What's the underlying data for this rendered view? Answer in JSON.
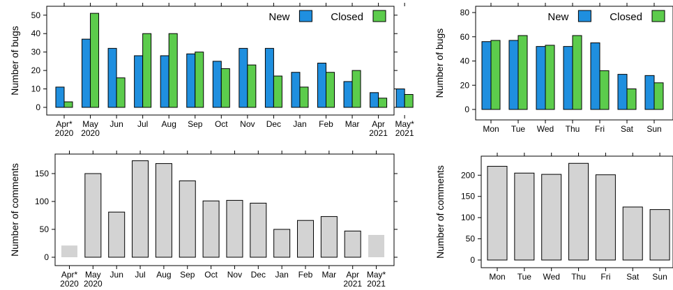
{
  "chart_data": [
    {
      "type": "bar",
      "categories": [
        "Apr*\n2020",
        "May\n2020",
        "Jun",
        "Jul",
        "Aug",
        "Sep",
        "Oct",
        "Nov",
        "Dec",
        "Jan",
        "Feb",
        "Mar",
        "Apr\n2021",
        "May*\n2021"
      ],
      "series": [
        {
          "name": "New",
          "values": [
            11,
            37,
            32,
            28,
            28,
            29,
            25,
            32,
            32,
            19,
            24,
            14,
            8,
            10
          ],
          "color": "#1f8fdf"
        },
        {
          "name": "Closed",
          "values": [
            3,
            51,
            16,
            40,
            40,
            30,
            21,
            23,
            17,
            11,
            19,
            20,
            5,
            7
          ],
          "color": "#5ccc4c"
        }
      ],
      "ylabel": "Number of bugs",
      "ylim": [
        0,
        50
      ],
      "yticks": [
        0,
        10,
        20,
        30,
        40,
        50
      ],
      "legend": "top-right",
      "grid": false
    },
    {
      "type": "bar",
      "categories": [
        "Mon",
        "Tue",
        "Wed",
        "Thu",
        "Fri",
        "Sat",
        "Sun"
      ],
      "series": [
        {
          "name": "New",
          "values": [
            56,
            57,
            52,
            52,
            55,
            29,
            28
          ],
          "color": "#1f8fdf"
        },
        {
          "name": "Closed",
          "values": [
            57,
            61,
            53,
            61,
            32,
            17,
            22
          ],
          "color": "#5ccc4c"
        }
      ],
      "ylabel": "Number of bugs",
      "ylim": [
        0,
        80
      ],
      "yticks": [
        0,
        20,
        40,
        60,
        80
      ],
      "legend": "top-right",
      "grid": false
    },
    {
      "type": "bar",
      "categories": [
        "Apr*\n2020",
        "May\n2020",
        "Jun",
        "Jul",
        "Aug",
        "Sep",
        "Oct",
        "Nov",
        "Dec",
        "Jan",
        "Feb",
        "Mar",
        "Apr\n2021",
        "May*\n2021"
      ],
      "values": [
        21,
        150,
        81,
        173,
        168,
        137,
        101,
        102,
        97,
        50,
        66,
        73,
        47,
        40
      ],
      "partial": [
        true,
        false,
        false,
        false,
        false,
        false,
        false,
        false,
        false,
        false,
        false,
        false,
        false,
        true
      ],
      "color": "#d3d3d3",
      "ylabel": "Number of comments",
      "ylim": [
        0,
        175
      ],
      "yticks": [
        0,
        50,
        100,
        150
      ],
      "grid": false
    },
    {
      "type": "bar",
      "categories": [
        "Mon",
        "Tue",
        "Wed",
        "Thu",
        "Fri",
        "Sat",
        "Sun"
      ],
      "values": [
        221,
        205,
        202,
        228,
        201,
        125,
        119
      ],
      "color": "#d3d3d3",
      "ylabel": "Number of comments",
      "ylim": [
        0,
        230
      ],
      "yticks": [
        0,
        50,
        100,
        150,
        200
      ],
      "grid": false
    }
  ]
}
